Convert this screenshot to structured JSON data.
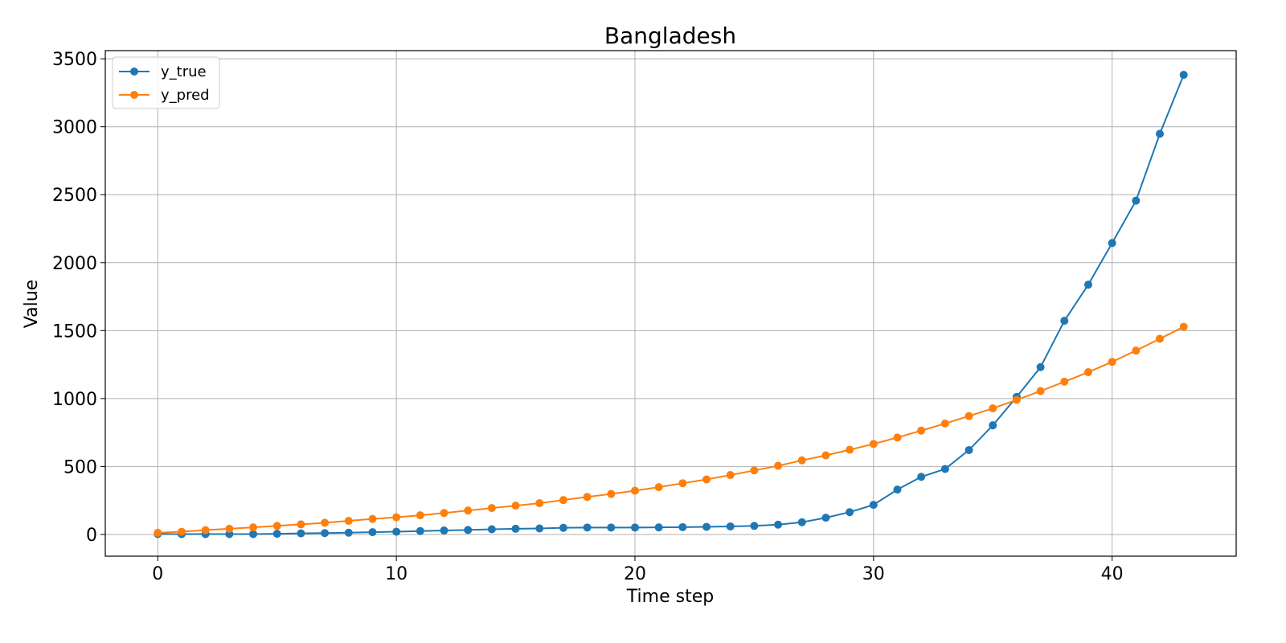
{
  "chart_data": {
    "type": "line",
    "title": "Bangladesh",
    "xlabel": "Time step",
    "ylabel": "Value",
    "xlim": [
      -2.2,
      45.2
    ],
    "ylim": [
      -160,
      3560
    ],
    "xticks": [
      0,
      10,
      20,
      30,
      40
    ],
    "yticks": [
      0,
      500,
      1000,
      1500,
      2000,
      2500,
      3000,
      3500
    ],
    "grid": true,
    "legend_position": "top-left",
    "x": [
      0,
      1,
      2,
      3,
      4,
      5,
      6,
      7,
      8,
      9,
      10,
      11,
      12,
      13,
      14,
      15,
      16,
      17,
      18,
      19,
      20,
      21,
      22,
      23,
      24,
      25,
      26,
      27,
      28,
      29,
      30,
      31,
      32,
      33,
      34,
      35,
      36,
      37,
      38,
      39,
      40,
      41,
      42,
      43
    ],
    "series": [
      {
        "name": "y_true",
        "color": "#1f77b4",
        "values": [
          3,
          3,
          3,
          3,
          3,
          5,
          8,
          10,
          13,
          17,
          20,
          25,
          29,
          33,
          38,
          42,
          44,
          49,
          51,
          51,
          51,
          52,
          54,
          56,
          59,
          63,
          72,
          90,
          123,
          164,
          218,
          330,
          424,
          482,
          621,
          803,
          1012,
          1231,
          1572,
          1838,
          2144,
          2456,
          2948,
          3382
        ]
      },
      {
        "name": "y_pred",
        "color": "#ff7f0e",
        "values": [
          12,
          20,
          32,
          42,
          52,
          63,
          74,
          86,
          100,
          114,
          126,
          141,
          158,
          176,
          194,
          212,
          230,
          253,
          276,
          298,
          322,
          348,
          377,
          405,
          437,
          471,
          505,
          545,
          582,
          623,
          666,
          713,
          764,
          816,
          871,
          928,
          990,
          1055,
          1124,
          1194,
          1270,
          1353,
          1440,
          1528
        ]
      }
    ]
  }
}
